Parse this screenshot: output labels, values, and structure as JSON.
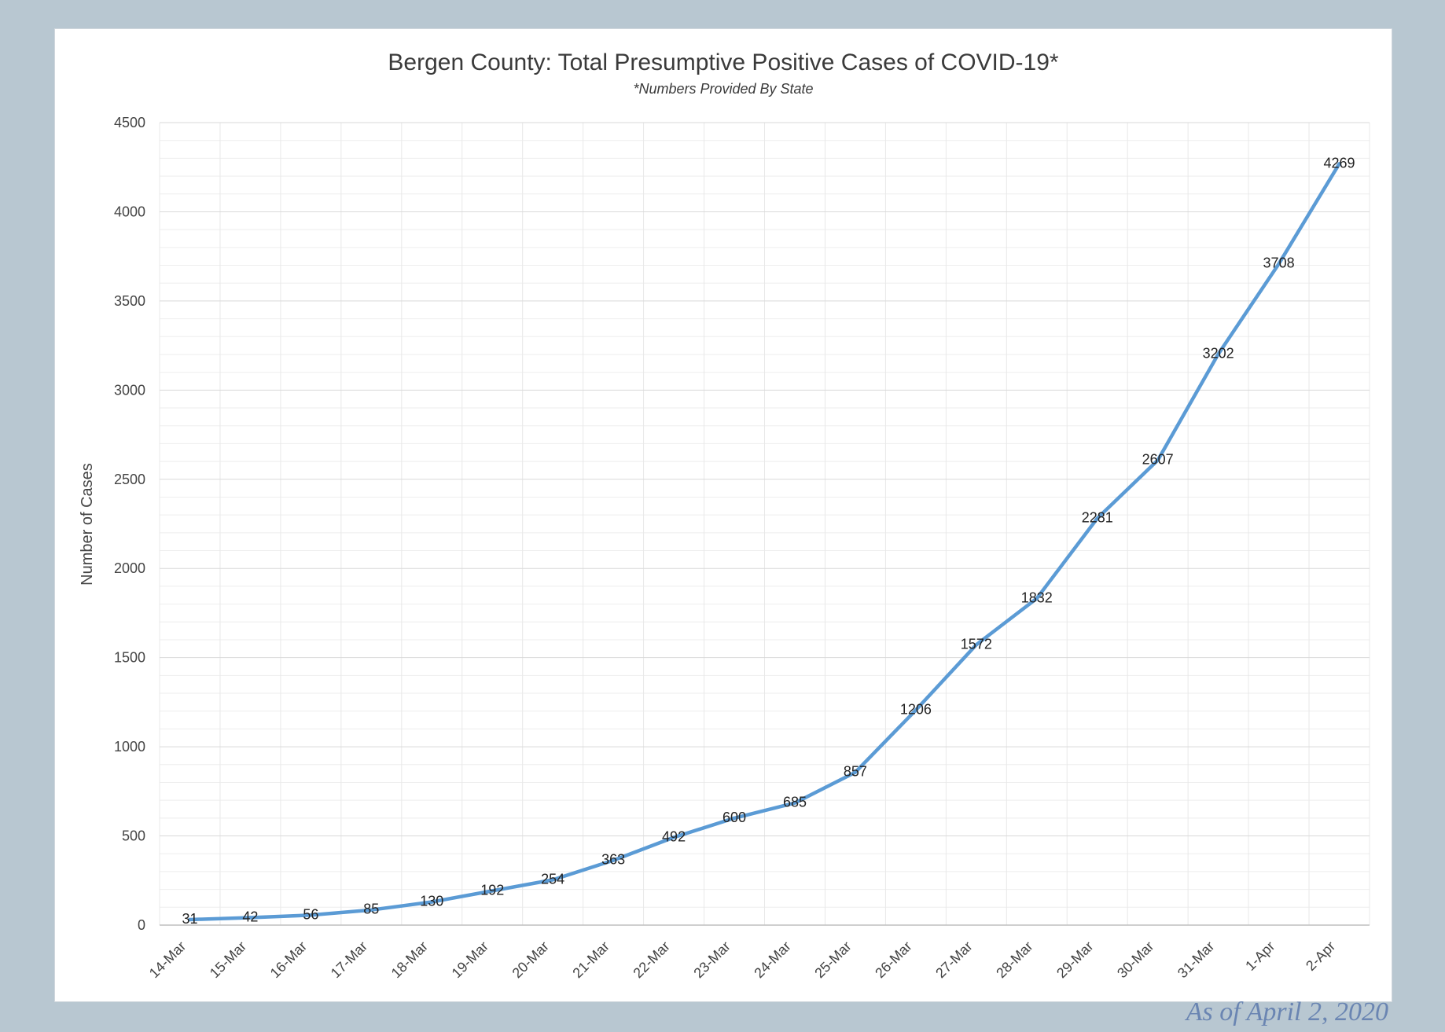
{
  "chart_data": {
    "type": "line",
    "title": "Bergen County: Total Presumptive Positive Cases of COVID-19*",
    "subtitle": "*Numbers Provided By State",
    "xlabel": "",
    "ylabel": "Number  of Cases",
    "ylim": [
      0,
      4500
    ],
    "yticks": [
      0,
      500,
      1000,
      1500,
      2000,
      2500,
      3000,
      3500,
      4000,
      4500
    ],
    "grid": true,
    "legend": "none",
    "line_color": "#5b9bd5",
    "categories": [
      "14-Mar",
      "15-Mar",
      "16-Mar",
      "17-Mar",
      "18-Mar",
      "19-Mar",
      "20-Mar",
      "21-Mar",
      "22-Mar",
      "23-Mar",
      "24-Mar",
      "25-Mar",
      "26-Mar",
      "27-Mar",
      "28-Mar",
      "29-Mar",
      "30-Mar",
      "31-Mar",
      "1-Apr",
      "2-Apr"
    ],
    "series": [
      {
        "name": "Total Cases",
        "values": [
          31,
          42,
          56,
          85,
          130,
          192,
          254,
          363,
          492,
          600,
          685,
          857,
          1206,
          1572,
          1832,
          2281,
          2607,
          3202,
          3708,
          4269
        ]
      }
    ]
  },
  "footer": {
    "as_of": "As of April 2, 2020"
  }
}
